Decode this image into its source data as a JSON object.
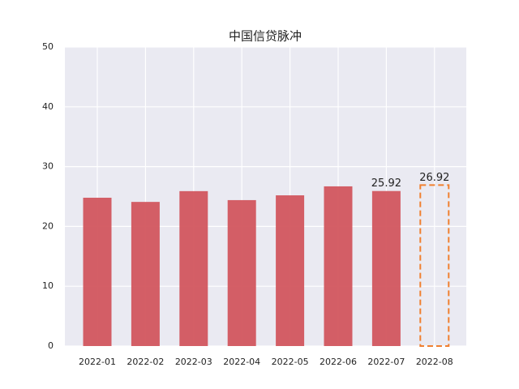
{
  "chart_data": {
    "type": "bar",
    "title": "中国信贷脉冲",
    "categories": [
      "2022-01",
      "2022-02",
      "2022-03",
      "2022-04",
      "2022-05",
      "2022-06",
      "2022-07",
      "2022-08"
    ],
    "values": [
      24.8,
      24.1,
      25.9,
      24.4,
      25.2,
      26.7,
      25.92,
      26.92
    ],
    "value_labels": [
      null,
      null,
      null,
      null,
      null,
      null,
      "25.92",
      "26.92"
    ],
    "outlined": [
      false,
      false,
      false,
      false,
      false,
      false,
      false,
      true
    ],
    "color": "#d2565e",
    "outline_color": "#f08030",
    "ylim": [
      0,
      50
    ],
    "yticks": [
      0,
      10,
      20,
      30,
      40,
      50
    ],
    "grid": true
  }
}
